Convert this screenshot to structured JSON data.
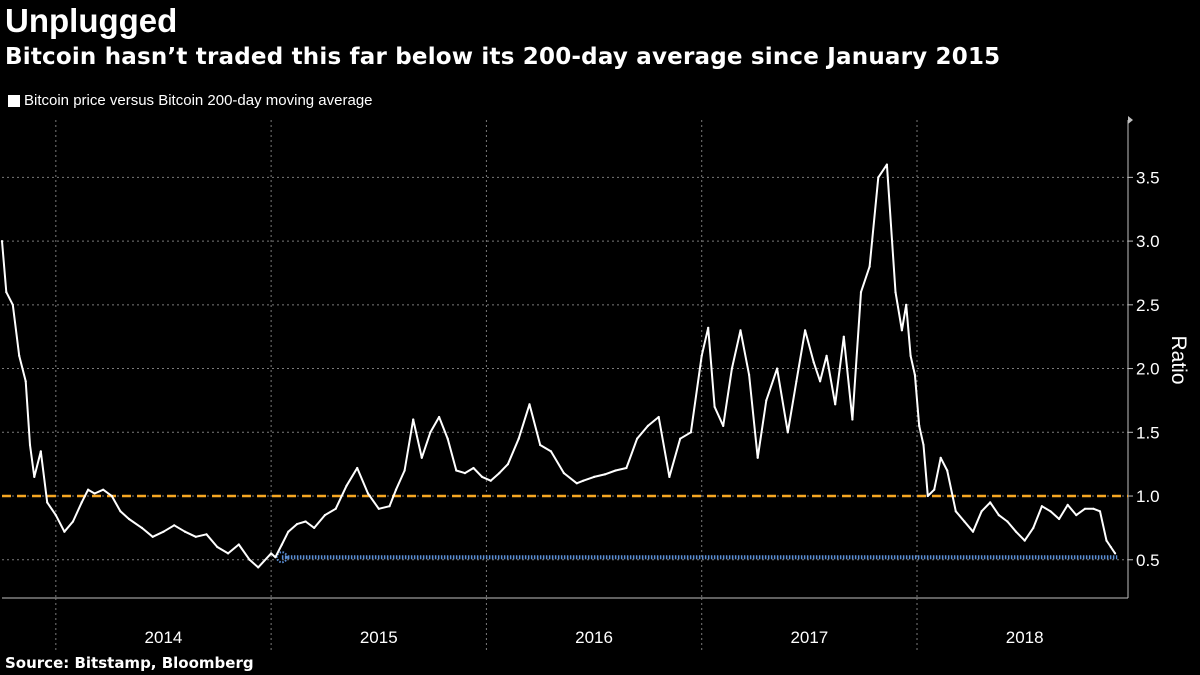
{
  "header": {
    "title": "Unplugged",
    "subtitle": "Bitcoin hasn’t traded this far below its 200-day average since January 2015"
  },
  "legend": {
    "label": "Bitcoin price versus Bitcoin 200-day moving average",
    "color": "#ffffff"
  },
  "footer": {
    "source": "Source: Bitstamp, Bloomberg"
  },
  "chart_data": {
    "type": "line",
    "title": "Unplugged",
    "subtitle": "Bitcoin hasn’t traded this far below its 200-day average since January 2015",
    "ylabel": "Ratio",
    "xlabel": "",
    "ylim": [
      0.2,
      3.95
    ],
    "xlim": [
      2013.75,
      2018.98
    ],
    "yticks": [
      "0.5",
      "1.0",
      "1.5",
      "2.0",
      "2.5",
      "3.0",
      "3.5"
    ],
    "xticks": [
      "2014",
      "2015",
      "2016",
      "2017",
      "2018"
    ],
    "grid": true,
    "legend_position": "top-left",
    "colors": {
      "series": "#ffffff",
      "reference": "#f5a623",
      "low_marker": "#5b8fd6"
    },
    "series": [
      {
        "name": "Bitcoin price versus Bitcoin 200-day moving average",
        "x": [
          2013.75,
          2013.77,
          2013.8,
          2013.83,
          2013.86,
          2013.88,
          2013.9,
          2013.93,
          2013.96,
          2014.0,
          2014.04,
          2014.08,
          2014.12,
          2014.15,
          2014.18,
          2014.22,
          2014.26,
          2014.3,
          2014.34,
          2014.4,
          2014.45,
          2014.5,
          2014.55,
          2014.6,
          2014.65,
          2014.7,
          2014.75,
          2014.8,
          2014.85,
          2014.9,
          2014.94,
          2015.0,
          2015.02,
          2015.05,
          2015.08,
          2015.12,
          2015.16,
          2015.2,
          2015.25,
          2015.3,
          2015.35,
          2015.4,
          2015.45,
          2015.5,
          2015.55,
          2015.58,
          2015.62,
          2015.66,
          2015.7,
          2015.74,
          2015.78,
          2015.82,
          2015.86,
          2015.9,
          2015.94,
          2015.98,
          2016.02,
          2016.06,
          2016.1,
          2016.15,
          2016.2,
          2016.25,
          2016.3,
          2016.36,
          2016.42,
          2016.45,
          2016.5,
          2016.55,
          2016.6,
          2016.65,
          2016.7,
          2016.75,
          2016.8,
          2016.85,
          2016.9,
          2016.95,
          2017.0,
          2017.03,
          2017.06,
          2017.1,
          2017.14,
          2017.18,
          2017.22,
          2017.26,
          2017.3,
          2017.35,
          2017.4,
          2017.44,
          2017.48,
          2017.52,
          2017.55,
          2017.58,
          2017.62,
          2017.66,
          2017.7,
          2017.74,
          2017.78,
          2017.82,
          2017.86,
          2017.9,
          2017.93,
          2017.95,
          2017.97,
          2017.99,
          2018.01,
          2018.03,
          2018.05,
          2018.08,
          2018.11,
          2018.14,
          2018.18,
          2018.22,
          2018.26,
          2018.3,
          2018.34,
          2018.38,
          2018.42,
          2018.46,
          2018.5,
          2018.54,
          2018.58,
          2018.62,
          2018.66,
          2018.7,
          2018.74,
          2018.78,
          2018.82,
          2018.85,
          2018.88,
          2018.9,
          2018.92
        ],
        "y": [
          3.0,
          2.6,
          2.5,
          2.1,
          1.9,
          1.4,
          1.15,
          1.35,
          0.95,
          0.85,
          0.72,
          0.8,
          0.95,
          1.05,
          1.02,
          1.05,
          1.0,
          0.88,
          0.82,
          0.75,
          0.68,
          0.72,
          0.77,
          0.72,
          0.68,
          0.7,
          0.6,
          0.55,
          0.62,
          0.5,
          0.44,
          0.55,
          0.52,
          0.62,
          0.72,
          0.78,
          0.8,
          0.75,
          0.85,
          0.9,
          1.08,
          1.22,
          1.02,
          0.9,
          0.92,
          1.05,
          1.2,
          1.6,
          1.3,
          1.5,
          1.62,
          1.45,
          1.2,
          1.18,
          1.22,
          1.15,
          1.12,
          1.18,
          1.25,
          1.45,
          1.72,
          1.4,
          1.35,
          1.18,
          1.1,
          1.12,
          1.15,
          1.17,
          1.2,
          1.22,
          1.45,
          1.55,
          1.62,
          1.15,
          1.45,
          1.5,
          2.1,
          2.32,
          1.7,
          1.55,
          2.0,
          2.3,
          1.95,
          1.3,
          1.75,
          2.0,
          1.5,
          1.9,
          2.3,
          2.05,
          1.9,
          2.1,
          1.72,
          2.25,
          1.6,
          2.6,
          2.8,
          3.5,
          3.6,
          2.6,
          2.3,
          2.5,
          2.1,
          1.95,
          1.55,
          1.4,
          1.0,
          1.05,
          1.3,
          1.2,
          0.88,
          0.8,
          0.72,
          0.88,
          0.95,
          0.85,
          0.8,
          0.72,
          0.65,
          0.75,
          0.92,
          0.88,
          0.82,
          0.93,
          0.85,
          0.9,
          0.9,
          0.88,
          0.65,
          0.6,
          0.55
        ]
      }
    ],
    "reference_lines": [
      {
        "y": 1.0,
        "style": "dashed",
        "color": "#f5a623"
      },
      {
        "y": 0.52,
        "x_start": 2015.05,
        "x_end": 2018.93,
        "style": "dotted",
        "color": "#5b8fd6"
      }
    ]
  }
}
